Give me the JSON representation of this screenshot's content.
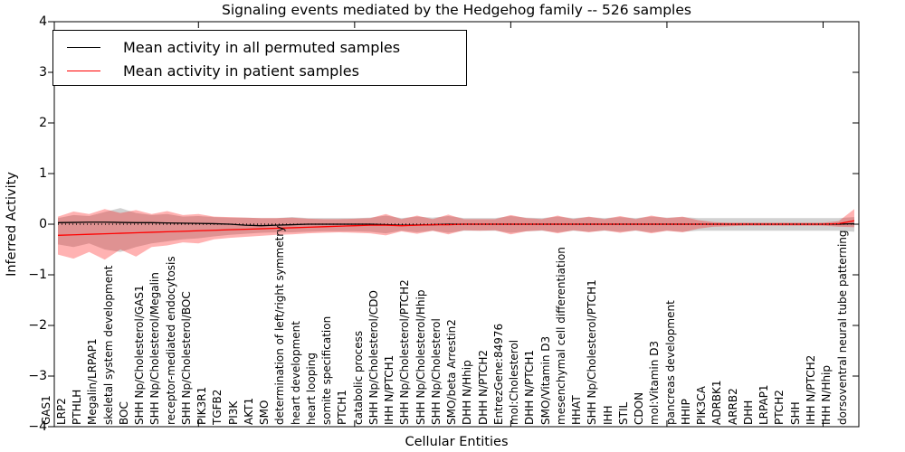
{
  "chart_data": {
    "type": "line",
    "title": "Signaling events mediated by the Hedgehog family -- 526 samples",
    "xlabel": "Cellular Entities",
    "ylabel": "Inferred Activity",
    "ylim": [
      -4,
      4
    ],
    "grid": false,
    "legend_position": "upper left",
    "yticks": [
      {
        "value": 4,
        "label": "4"
      },
      {
        "value": 3,
        "label": "3"
      },
      {
        "value": 2,
        "label": "2"
      },
      {
        "value": 1,
        "label": "1"
      },
      {
        "value": 0,
        "label": "0"
      },
      {
        "value": -1,
        "label": "−1"
      },
      {
        "value": -2,
        "label": "−2"
      },
      {
        "value": -3,
        "label": "−3"
      },
      {
        "value": -4,
        "label": "−4"
      }
    ],
    "legend": [
      {
        "label": "Mean activity in all permuted samples",
        "color": "#000000"
      },
      {
        "label": "Mean activity in patient samples",
        "color": "#ff0000"
      }
    ],
    "categories": [
      "GAS1",
      "LRP2",
      "PTHLH",
      "Megalin/LRPAP1",
      "skeletal system development",
      "BOC",
      "SHH Np/Cholesterol/GAS1",
      "SHH Np/Cholesterol/Megalin",
      "receptor-mediated endocytosis",
      "SHH Np/Cholesterol/BOC",
      "PIK3R1",
      "TGFB2",
      "PI3K",
      "AKT1",
      "SMO",
      "determination of left/right symmetry",
      "heart development",
      "heart looping",
      "somite specification",
      "PTCH1",
      "catabolic process",
      "SHH Np/Cholesterol/CDO",
      "IHH N/PTCH1",
      "SHH Np/Cholesterol/PTCH2",
      "SHH Np/Cholesterol/Hhip",
      "SHH Np/Cholesterol",
      "SMO/beta Arrestin2",
      "DHH N/Hhip",
      "DHH N/PTCH2",
      "EntrezGene:84976",
      "mol:Cholesterol",
      "DHH N/PTCH1",
      "SMO/Vitamin D3",
      "mesenchymal cell differentiation",
      "HHAT",
      "SHH Np/Cholesterol/PTCH1",
      "IHH",
      "STIL",
      "CDON",
      "mol:Vitamin D3",
      "pancreas development",
      "HHIP",
      "PIK3CA",
      "ADRBK1",
      "ARRB2",
      "DHH",
      "LRPAP1",
      "PTCH2",
      "SHH",
      "IHH N/PTCH2",
      "IHH N/Hhip",
      "dorsoventral neural tube patterning"
    ],
    "series": [
      {
        "name": "Mean activity in all permuted samples",
        "color": "#000000",
        "values": [
          0.03,
          0.035,
          0.04,
          0.04,
          0.035,
          0.03,
          0.03,
          0.025,
          0.02,
          0.015,
          0.01,
          0.0,
          -0.02,
          -0.03,
          -0.02,
          -0.01,
          0.0,
          0.0,
          0.0,
          0.0,
          0.0,
          -0.01,
          -0.02,
          -0.015,
          -0.01,
          0.0,
          0.0,
          0.0,
          0.0,
          0.0,
          0.0,
          0.0,
          0.0,
          0.0,
          0.0,
          0.0,
          0.0,
          0.0,
          0.0,
          0.0,
          0.0,
          0.0,
          0.0,
          0.0,
          0.0,
          0.0,
          0.0,
          0.0,
          0.0,
          0.0,
          0.0,
          0.01
        ]
      },
      {
        "name": "Mean activity in patient samples",
        "color": "#ff0000",
        "values": [
          -0.22,
          -0.21,
          -0.2,
          -0.19,
          -0.18,
          -0.17,
          -0.16,
          -0.15,
          -0.14,
          -0.13,
          -0.12,
          -0.11,
          -0.1,
          -0.09,
          -0.08,
          -0.07,
          -0.06,
          -0.05,
          -0.04,
          -0.03,
          -0.02,
          -0.02,
          -0.03,
          -0.02,
          -0.01,
          -0.01,
          0.0,
          0.0,
          0.0,
          0.0,
          0.0,
          0.0,
          0.0,
          0.0,
          0.0,
          0.0,
          0.0,
          0.0,
          0.0,
          0.0,
          0.0,
          0.0,
          0.0,
          0.0,
          0.0,
          0.0,
          0.0,
          0.0,
          0.0,
          0.0,
          0.01,
          0.07
        ]
      }
    ],
    "bands": [
      {
        "name": "permuted-samples-range",
        "color": "rgba(0,0,0,0.18)",
        "upper": [
          0.12,
          0.18,
          0.16,
          0.24,
          0.32,
          0.22,
          0.18,
          0.2,
          0.15,
          0.16,
          0.14,
          0.13,
          0.13,
          0.12,
          0.12,
          0.14,
          0.12,
          0.12,
          0.12,
          0.12,
          0.13,
          0.17,
          0.12,
          0.15,
          0.13,
          0.16,
          0.12,
          0.12,
          0.12,
          0.16,
          0.13,
          0.12,
          0.15,
          0.12,
          0.14,
          0.12,
          0.14,
          0.12,
          0.15,
          0.13,
          0.14,
          0.12,
          0.12,
          0.12,
          0.12,
          0.12,
          0.12,
          0.12,
          0.12,
          0.12,
          0.12,
          0.14
        ],
        "lower": [
          -0.4,
          -0.45,
          -0.38,
          -0.5,
          -0.55,
          -0.45,
          -0.38,
          -0.34,
          -0.3,
          -0.28,
          -0.24,
          -0.21,
          -0.19,
          -0.17,
          -0.16,
          -0.16,
          -0.15,
          -0.14,
          -0.14,
          -0.14,
          -0.15,
          -0.18,
          -0.13,
          -0.16,
          -0.13,
          -0.17,
          -0.13,
          -0.13,
          -0.13,
          -0.17,
          -0.14,
          -0.13,
          -0.16,
          -0.13,
          -0.15,
          -0.13,
          -0.15,
          -0.13,
          -0.16,
          -0.13,
          -0.15,
          -0.13,
          -0.13,
          -0.13,
          -0.13,
          -0.13,
          -0.13,
          -0.13,
          -0.13,
          -0.13,
          -0.13,
          -0.15
        ]
      },
      {
        "name": "patient-samples-range",
        "color": "rgba(255,0,0,0.3)",
        "upper": [
          0.15,
          0.25,
          0.2,
          0.3,
          0.22,
          0.28,
          0.2,
          0.26,
          0.18,
          0.2,
          0.15,
          0.14,
          0.13,
          0.12,
          0.12,
          0.13,
          0.11,
          0.1,
          0.1,
          0.11,
          0.12,
          0.2,
          0.1,
          0.17,
          0.1,
          0.19,
          0.1,
          0.1,
          0.1,
          0.18,
          0.12,
          0.1,
          0.17,
          0.1,
          0.15,
          0.1,
          0.16,
          0.1,
          0.17,
          0.12,
          0.15,
          0.08,
          0.04,
          0.03,
          0.03,
          0.03,
          0.03,
          0.03,
          0.03,
          0.03,
          0.06,
          0.3
        ],
        "lower": [
          -0.6,
          -0.68,
          -0.55,
          -0.7,
          -0.5,
          -0.64,
          -0.45,
          -0.42,
          -0.36,
          -0.38,
          -0.3,
          -0.27,
          -0.25,
          -0.23,
          -0.21,
          -0.2,
          -0.18,
          -0.17,
          -0.16,
          -0.17,
          -0.18,
          -0.22,
          -0.14,
          -0.19,
          -0.13,
          -0.2,
          -0.12,
          -0.13,
          -0.12,
          -0.2,
          -0.14,
          -0.12,
          -0.18,
          -0.12,
          -0.16,
          -0.12,
          -0.17,
          -0.12,
          -0.18,
          -0.13,
          -0.16,
          -0.09,
          -0.05,
          -0.04,
          -0.03,
          -0.03,
          -0.03,
          -0.03,
          -0.03,
          -0.03,
          -0.05,
          -0.06
        ]
      }
    ]
  }
}
